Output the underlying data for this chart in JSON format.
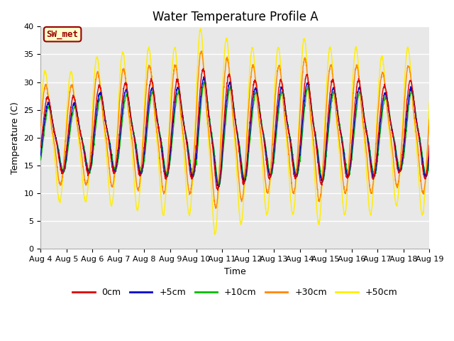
{
  "title": "Water Temperature Profile A",
  "xlabel": "Time",
  "ylabel": "Temperature (C)",
  "ylim": [
    0,
    40
  ],
  "ytick_values": [
    0,
    5,
    10,
    15,
    20,
    25,
    30,
    35,
    40
  ],
  "xtick_labels": [
    "Aug 4",
    "Aug 5",
    "Aug 6",
    "Aug 7",
    "Aug 8",
    "Aug 9",
    "Aug 10",
    "Aug 11",
    "Aug 12",
    "Aug 13",
    "Aug 14",
    "Aug 15",
    "Aug 16",
    "Aug 17",
    "Aug 18",
    "Aug 19"
  ],
  "line_colors": {
    "0cm": "#dd0000",
    "+5cm": "#0000cc",
    "+10cm": "#00bb00",
    "+30cm": "#ff8800",
    "+50cm": "#ffee00"
  },
  "annotation_text": "SW_met",
  "annotation_color": "#990000",
  "annotation_bg": "#ffffcc",
  "plot_bg": "#e8e8e8",
  "fig_bg": "#ffffff",
  "grid_color": "#ffffff",
  "title_fontsize": 12,
  "axis_fontsize": 9,
  "tick_fontsize": 8
}
